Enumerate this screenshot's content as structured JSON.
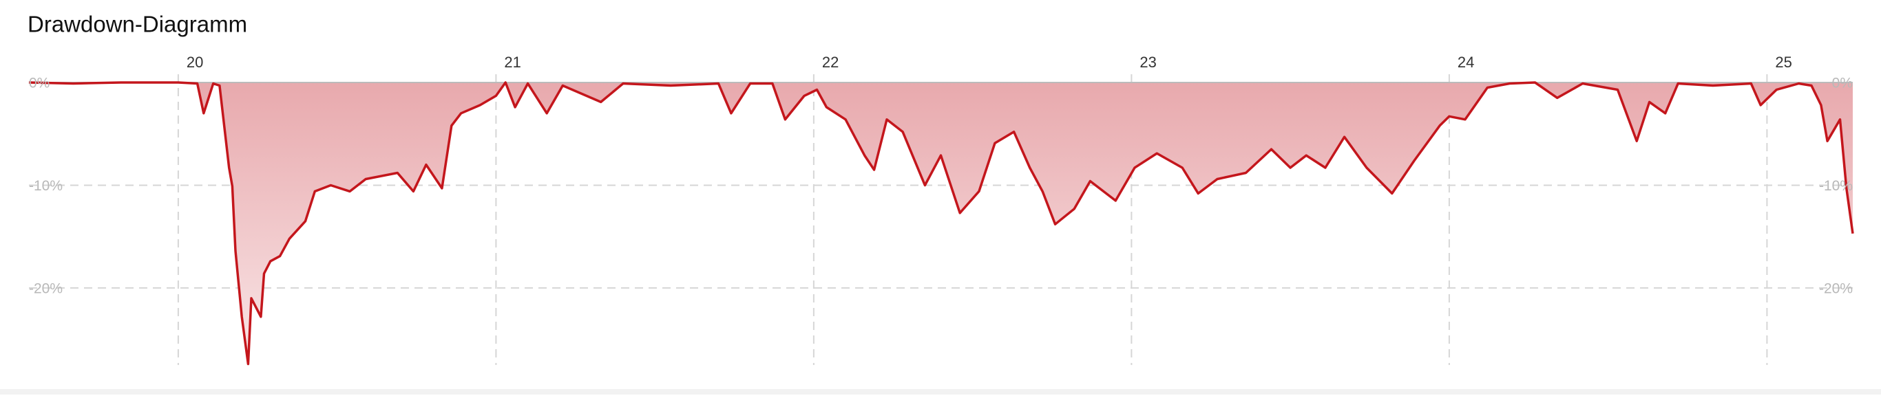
{
  "chart_data": {
    "type": "area",
    "title": "Drawdown-Diagramm",
    "x": [
      19.53,
      19.67,
      19.82,
      20.0,
      20.06,
      20.08,
      20.11,
      20.13,
      20.16,
      20.17,
      20.18,
      20.2,
      20.21,
      20.22,
      20.23,
      20.26,
      20.27,
      20.29,
      20.32,
      20.35,
      20.4,
      20.43,
      20.48,
      20.54,
      20.59,
      20.69,
      20.74,
      20.78,
      20.83,
      20.86,
      20.89,
      20.95,
      21.0,
      21.03,
      21.06,
      21.1,
      21.16,
      21.21,
      21.33,
      21.4,
      21.55,
      21.7,
      21.74,
      21.8,
      21.87,
      21.91,
      21.97,
      22.01,
      22.04,
      22.1,
      22.16,
      22.19,
      22.23,
      22.28,
      22.35,
      22.4,
      22.46,
      22.52,
      22.57,
      22.63,
      22.68,
      22.72,
      22.76,
      22.82,
      22.87,
      22.95,
      23.01,
      23.08,
      23.16,
      23.21,
      23.27,
      23.36,
      23.44,
      23.5,
      23.55,
      23.61,
      23.67,
      23.74,
      23.82,
      23.89,
      23.97,
      24.0,
      24.05,
      24.12,
      24.19,
      24.27,
      24.34,
      24.42,
      24.53,
      24.59,
      24.63,
      24.68,
      24.72,
      24.83,
      24.95,
      24.98,
      25.03,
      25.1,
      25.14,
      25.17,
      25.19,
      25.23,
      25.25,
      25.27
    ],
    "values": [
      0,
      -0.1,
      0,
      0,
      -0.1,
      -3.0,
      -0.1,
      -0.3,
      -8.3,
      -10.1,
      -16.4,
      -22.8,
      -25.1,
      -27.4,
      -21.0,
      -22.8,
      -18.6,
      -17.4,
      -16.9,
      -15.2,
      -13.5,
      -10.6,
      -10.0,
      -10.6,
      -9.4,
      -8.8,
      -10.6,
      -8.0,
      -10.3,
      -4.2,
      -3.0,
      -2.2,
      -1.3,
      0,
      -2.4,
      -0.1,
      -3.0,
      -0.3,
      -1.9,
      -0.1,
      -0.3,
      -0.1,
      -3.0,
      -0.1,
      -0.1,
      -3.6,
      -1.3,
      -0.7,
      -2.4,
      -3.6,
      -7.1,
      -8.5,
      -3.6,
      -4.8,
      -10.0,
      -7.1,
      -12.7,
      -10.6,
      -5.9,
      -4.8,
      -8.3,
      -10.6,
      -13.8,
      -12.3,
      -9.6,
      -11.5,
      -8.3,
      -6.9,
      -8.3,
      -10.8,
      -9.4,
      -8.8,
      -6.5,
      -8.3,
      -7.1,
      -8.3,
      -5.3,
      -8.3,
      -10.8,
      -7.6,
      -4.2,
      -3.3,
      -3.6,
      -0.5,
      -0.1,
      0,
      -1.5,
      -0.1,
      -0.7,
      -5.7,
      -1.9,
      -3.0,
      -0.1,
      -0.3,
      -0.1,
      -2.2,
      -0.7,
      -0.1,
      -0.3,
      -2.2,
      -5.7,
      -3.6,
      -10.3,
      -14.7
    ],
    "color": "#c4161c",
    "xlim": [
      19.53,
      25.27
    ],
    "xticks": [
      20,
      21,
      22,
      23,
      24,
      25
    ],
    "ylim": [
      -27.5,
      0
    ],
    "yticks": [
      {
        "value": 0,
        "label": "0%"
      },
      {
        "value": -10,
        "label": "-10%"
      },
      {
        "value": -20,
        "label": "-20%"
      }
    ],
    "grid": true
  }
}
